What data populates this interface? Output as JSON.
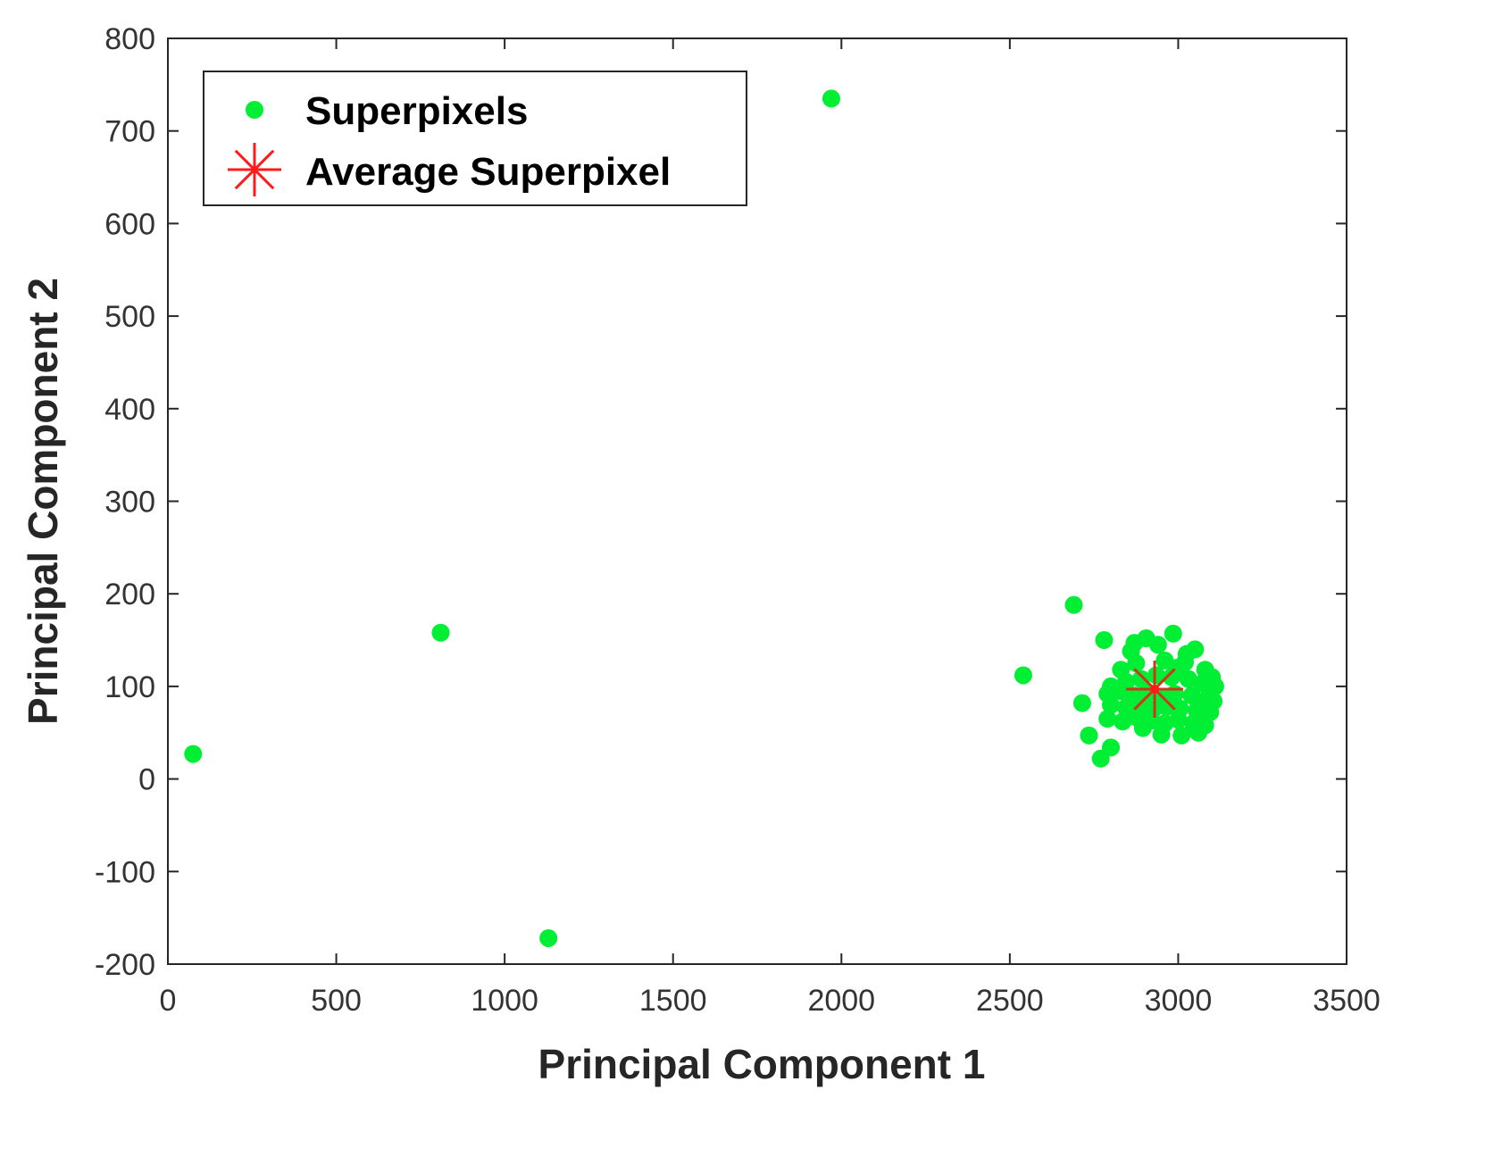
{
  "chart_data": {
    "type": "scatter",
    "xlabel": "Principal Component 1",
    "ylabel": "Principal Component 2",
    "xlim": [
      0,
      3500
    ],
    "ylim": [
      -200,
      800
    ],
    "xticks": [
      0,
      500,
      1000,
      1500,
      2000,
      2500,
      3000,
      3500
    ],
    "yticks": [
      -200,
      -100,
      0,
      100,
      200,
      300,
      400,
      500,
      600,
      700,
      800
    ],
    "grid": false,
    "legend_position": "top-left",
    "series": [
      {
        "name": "Superpixels",
        "marker": "filled-circle",
        "color": "#00ee33",
        "points": [
          [
            1970,
            735
          ],
          [
            810,
            158
          ],
          [
            75,
            27
          ],
          [
            1130,
            -172
          ],
          [
            2690,
            188
          ],
          [
            2540,
            112
          ],
          [
            2715,
            82
          ],
          [
            2735,
            47
          ],
          [
            2770,
            22
          ],
          [
            2800,
            34
          ],
          [
            2780,
            150
          ],
          [
            2985,
            157
          ],
          [
            2905,
            152
          ],
          [
            2860,
            138
          ],
          [
            2940,
            145
          ],
          [
            3050,
            140
          ],
          [
            2830,
            118
          ],
          [
            2875,
            125
          ],
          [
            2960,
            128
          ],
          [
            3020,
            126
          ],
          [
            3080,
            118
          ],
          [
            3100,
            110
          ],
          [
            2800,
            100
          ],
          [
            2845,
            105
          ],
          [
            2890,
            108
          ],
          [
            2935,
            112
          ],
          [
            2980,
            110
          ],
          [
            3030,
            108
          ],
          [
            3070,
            103
          ],
          [
            3110,
            100
          ],
          [
            2790,
            92
          ],
          [
            2830,
            95
          ],
          [
            2870,
            90
          ],
          [
            2910,
            93
          ],
          [
            2950,
            88
          ],
          [
            2990,
            92
          ],
          [
            3040,
            90
          ],
          [
            3085,
            86
          ],
          [
            3105,
            84
          ],
          [
            2800,
            80
          ],
          [
            2845,
            77
          ],
          [
            2885,
            80
          ],
          [
            2925,
            75
          ],
          [
            2965,
            78
          ],
          [
            3005,
            76
          ],
          [
            3055,
            74
          ],
          [
            3095,
            72
          ],
          [
            2790,
            65
          ],
          [
            2835,
            62
          ],
          [
            2880,
            66
          ],
          [
            2920,
            63
          ],
          [
            2960,
            60
          ],
          [
            3000,
            64
          ],
          [
            3045,
            60
          ],
          [
            3080,
            58
          ],
          [
            2950,
            48
          ],
          [
            3010,
            47
          ],
          [
            3060,
            50
          ],
          [
            2895,
            55
          ],
          [
            2860,
            68
          ],
          [
            3025,
            135
          ],
          [
            2995,
            120
          ],
          [
            2870,
            147
          ]
        ]
      },
      {
        "name": "Average Superpixel",
        "marker": "asterisk",
        "color": "#ff1a1a",
        "points": [
          [
            2930,
            97
          ]
        ]
      }
    ]
  }
}
